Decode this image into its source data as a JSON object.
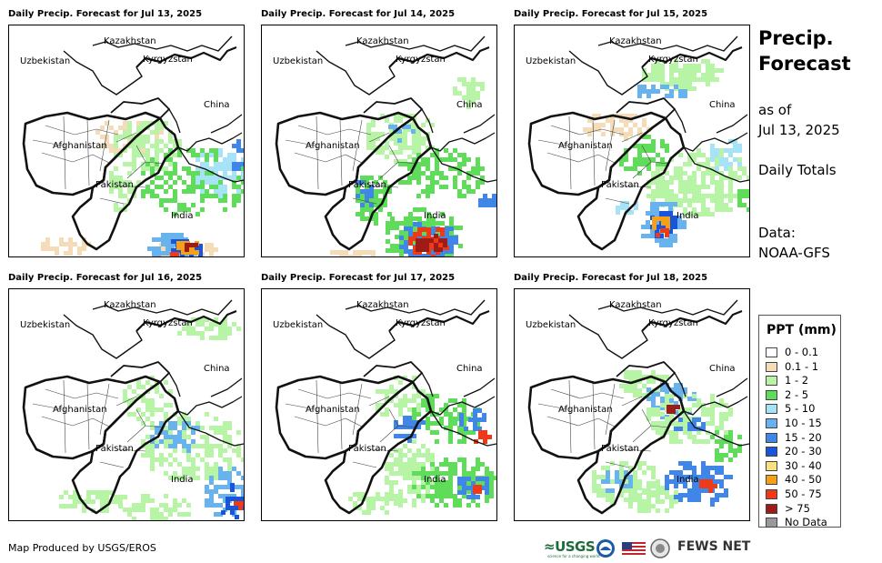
{
  "panels": [
    {
      "title": "Daily Precip. Forecast for Jul 13, 2025"
    },
    {
      "title": "Daily Precip. Forecast for Jul 14, 2025"
    },
    {
      "title": "Daily Precip. Forecast for Jul 15, 2025"
    },
    {
      "title": "Daily Precip. Forecast for Jul 16, 2025"
    },
    {
      "title": "Daily Precip. Forecast for Jul 17, 2025"
    },
    {
      "title": "Daily Precip. Forecast for Jul 18, 2025"
    }
  ],
  "map_labels": {
    "kazakhstan": "Kazakhstan",
    "uzbekistan": "Uzbekistan",
    "kyrgyzstan": "Kyrgyzstan",
    "china": "China",
    "afghanistan": "Afghanistan",
    "pakistan": "Pakistan",
    "india": "India"
  },
  "sidebar": {
    "title_line1": "Precip.",
    "title_line2": "Forecast",
    "asof_line1": "as of",
    "asof_line2": "Jul 13, 2025",
    "daily": "Daily Totals",
    "data_line1": "Data:",
    "data_line2": "NOAA-GFS"
  },
  "legend": {
    "title": "PPT (mm)",
    "items": [
      {
        "label": "0 - 0.1",
        "color": "#ffffff"
      },
      {
        "label": "0.1 - 1",
        "color": "#f3dcb7"
      },
      {
        "label": "1 - 2",
        "color": "#b8f4a6"
      },
      {
        "label": "2 - 5",
        "color": "#5fdc5a"
      },
      {
        "label": "5 - 10",
        "color": "#a7e3f6"
      },
      {
        "label": "10 - 15",
        "color": "#68b2ee"
      },
      {
        "label": "15 - 20",
        "color": "#3f86e8"
      },
      {
        "label": "20 - 30",
        "color": "#1955d9"
      },
      {
        "label": "30 - 40",
        "color": "#fae081"
      },
      {
        "label": "40 - 50",
        "color": "#f6a019"
      },
      {
        "label": "50 - 75",
        "color": "#ee3a17"
      },
      {
        "label": "> 75",
        "color": "#9e1c18"
      },
      {
        "label": "No Data",
        "color": "#999999"
      }
    ]
  },
  "footer": {
    "credit": "Map Produced by USGS/EROS",
    "usgs": "≈USGS",
    "usgs_tagline": "science for a changing world",
    "fewsnet": "FEWS NET"
  }
}
